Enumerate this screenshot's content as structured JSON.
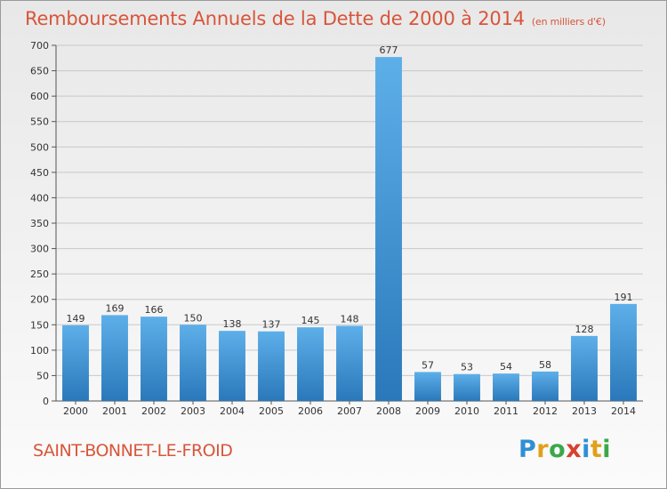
{
  "title": "Remboursements Annuels de la Dette de 2000 à 2014",
  "unit": "(en milliers d'€)",
  "commune": "SAINT-BONNET-LE-FROID",
  "logo": {
    "letters": [
      "P",
      "r",
      "o",
      "x",
      "i",
      "t",
      "i"
    ],
    "colors": [
      "#2f8fd5",
      "#e0a11a",
      "#3aa84a",
      "#d8412f",
      "#2f8fd5",
      "#e0a11a",
      "#3aa84a"
    ]
  },
  "colors": {
    "bar_top": "#5dafe9",
    "bar_bottom": "#2a78ba",
    "title": "#d8553a"
  },
  "chart_data": {
    "type": "bar",
    "title": "Remboursements Annuels de la Dette de 2000 à 2014",
    "categories": [
      "2000",
      "2001",
      "2002",
      "2003",
      "2004",
      "2005",
      "2006",
      "2007",
      "2008",
      "2009",
      "2010",
      "2011",
      "2012",
      "2013",
      "2014"
    ],
    "values": [
      149,
      169,
      166,
      150,
      138,
      137,
      145,
      148,
      677,
      57,
      53,
      54,
      58,
      128,
      191
    ],
    "ylim": [
      0,
      700
    ],
    "yticks": [
      0,
      50,
      100,
      150,
      200,
      250,
      300,
      350,
      400,
      450,
      500,
      550,
      600,
      650,
      700
    ],
    "grid": true,
    "legend": "none",
    "xlabel": "",
    "ylabel": ""
  }
}
